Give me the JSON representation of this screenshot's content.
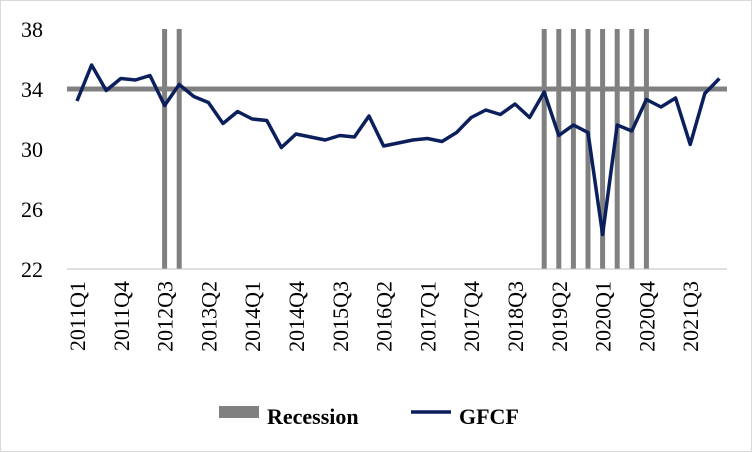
{
  "chart_data": {
    "type": "line",
    "title": "",
    "xlabel": "",
    "ylabel": "",
    "ylim": [
      22,
      38
    ],
    "yticks": [
      22,
      26,
      30,
      34,
      38
    ],
    "legend_position": "bottom",
    "colors": {
      "gfcf": "#0a1f5c",
      "recession": "#808080",
      "average": "#808080"
    },
    "x": [
      "2011Q1",
      "2011Q2",
      "2011Q3",
      "2011Q4",
      "2012Q1",
      "2012Q2",
      "2012Q3",
      "2012Q4",
      "2013Q1",
      "2013Q2",
      "2013Q3",
      "2013Q4",
      "2014Q1",
      "2014Q2",
      "2014Q3",
      "2014Q4",
      "2015Q1",
      "2015Q2",
      "2015Q3",
      "2015Q4",
      "2016Q1",
      "2016Q2",
      "2016Q3",
      "2016Q4",
      "2017Q1",
      "2017Q2",
      "2017Q3",
      "2017Q4",
      "2018Q1",
      "2018Q2",
      "2018Q3",
      "2018Q4",
      "2019Q1",
      "2019Q2",
      "2019Q3",
      "2019Q4",
      "2020Q1",
      "2020Q2",
      "2020Q3",
      "2020Q4",
      "2021Q1",
      "2021Q2",
      "2021Q3",
      "2021Q4",
      "2022Q1"
    ],
    "x_tick_labels": [
      "2011Q1",
      "2011Q4",
      "2012Q3",
      "2013Q2",
      "2014Q1",
      "2014Q4",
      "2015Q3",
      "2016Q2",
      "2017Q1",
      "2017Q4",
      "2018Q3",
      "2019Q2",
      "2020Q1",
      "2020Q4",
      "2021Q3"
    ],
    "series": [
      {
        "name": "GFCF",
        "values": [
          33.2,
          35.6,
          33.9,
          34.7,
          34.6,
          34.9,
          32.9,
          34.3,
          33.5,
          33.1,
          31.7,
          32.5,
          32.0,
          31.9,
          30.1,
          31.0,
          30.8,
          30.6,
          30.9,
          30.8,
          32.2,
          30.2,
          30.4,
          30.6,
          30.7,
          30.5,
          31.1,
          32.1,
          32.6,
          32.3,
          33.0,
          32.1,
          33.8,
          30.9,
          31.6,
          31.1,
          24.3,
          31.6,
          31.2,
          33.3,
          32.8,
          33.4,
          30.3,
          33.7,
          34.7
        ]
      }
    ],
    "average_line": 34.0,
    "recession": {
      "name": "Recession",
      "quarters": [
        "2012Q3",
        "2012Q4",
        "2019Q1",
        "2019Q2",
        "2019Q3",
        "2019Q4",
        "2020Q1",
        "2020Q2",
        "2020Q3",
        "2020Q4"
      ]
    }
  }
}
